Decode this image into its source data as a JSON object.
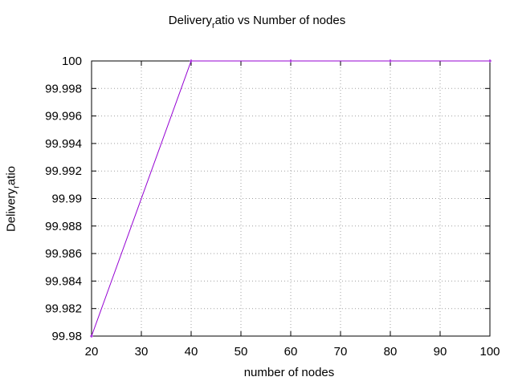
{
  "chart_data": {
    "type": "line",
    "title_prefix": "Delivery",
    "title_sub": "r",
    "title_suffix": "atio vs Number of nodes",
    "xlabel": "number of nodes",
    "ylabel_prefix": "Delivery",
    "ylabel_sub": "r",
    "ylabel_suffix": "atio",
    "xlim": [
      20,
      100
    ],
    "ylim": [
      99.98,
      100
    ],
    "xticks": [
      "20",
      "30",
      "40",
      "50",
      "60",
      "70",
      "80",
      "90",
      "100"
    ],
    "yticks": [
      "99.98",
      "99.982",
      "99.984",
      "99.986",
      "99.988",
      "99.99",
      "99.992",
      "99.994",
      "99.996",
      "99.998",
      "100"
    ],
    "grid": true,
    "series": [
      {
        "x": [
          20,
          40,
          60,
          80,
          100
        ],
        "y": [
          99.98,
          100,
          100,
          100,
          100
        ],
        "color": "#9400d3"
      }
    ]
  }
}
